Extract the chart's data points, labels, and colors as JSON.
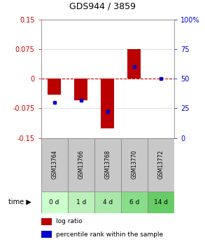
{
  "title": "GDS944 / 3859",
  "samples": [
    "GSM13764",
    "GSM13766",
    "GSM13768",
    "GSM13770",
    "GSM13772"
  ],
  "time_labels": [
    "0 d",
    "1 d",
    "4 d",
    "6 d",
    "14 d"
  ],
  "log_ratios": [
    -0.04,
    -0.055,
    -0.125,
    0.075,
    0.0
  ],
  "percentile_ranks": [
    30,
    32,
    22,
    60,
    50
  ],
  "ylim_left": [
    -0.15,
    0.15
  ],
  "ylim_right": [
    0,
    100
  ],
  "left_ticks": [
    -0.15,
    -0.075,
    0,
    0.075,
    0.15
  ],
  "right_ticks": [
    0,
    25,
    50,
    75,
    100
  ],
  "bar_color": "#bb0000",
  "dot_color": "#0000cc",
  "background_plot": "#ffffff",
  "background_sample": "#c8c8c8",
  "green_colors": [
    "#ccffcc",
    "#bbf0bb",
    "#aae8aa",
    "#88dd88",
    "#66cc66"
  ],
  "grid_color": "#000000",
  "zero_line_color": "#cc0000",
  "bar_width": 0.5,
  "left_tick_labels": [
    "0.15",
    "0.075",
    "0",
    "-0.075",
    "-0.15"
  ],
  "right_tick_labels": [
    "100%",
    "75",
    "50",
    "25",
    "0"
  ]
}
